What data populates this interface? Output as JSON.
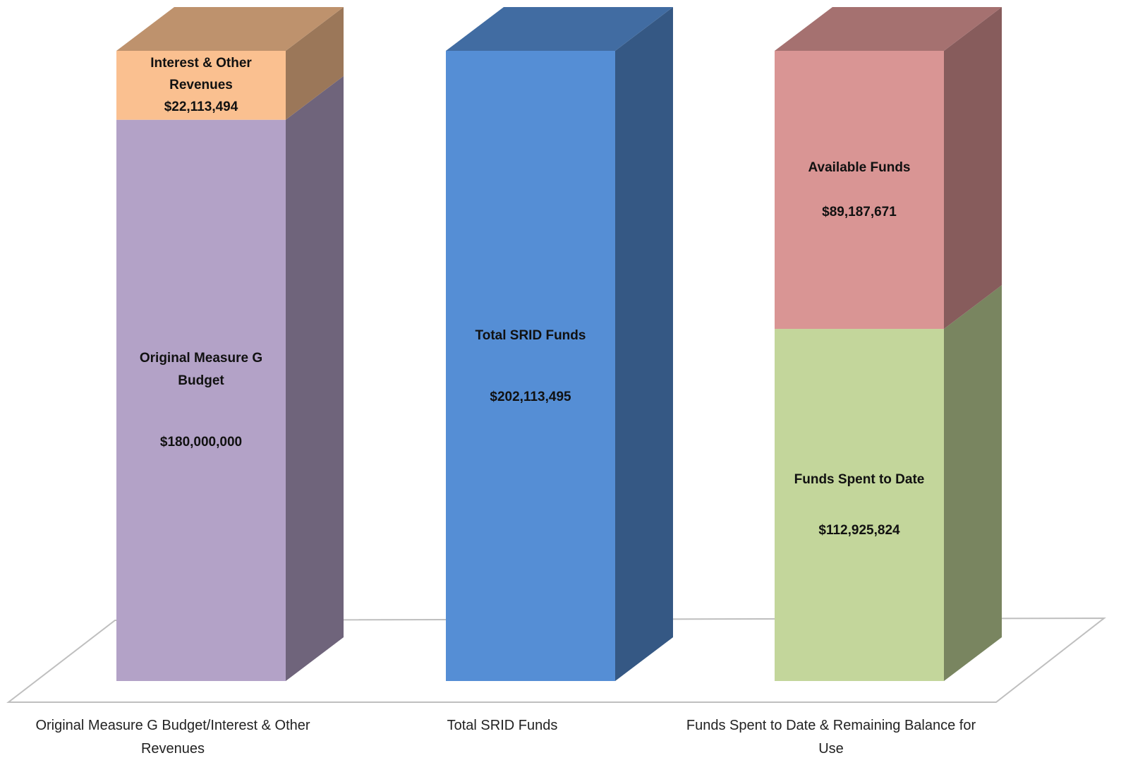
{
  "chart_data": {
    "type": "stacked-bar-3d",
    "categories": [
      "Original Measure G Budget/Interest & Other Revenues",
      "Total SRID Funds",
      "Funds Spent to Date & Remaining Balance for Use"
    ],
    "series": [
      {
        "name": "Original Measure G Budget",
        "color": "#b3a2c7",
        "values": [
          180000000,
          null,
          null
        ],
        "value_labels": [
          "$180,000,000",
          null,
          null
        ]
      },
      {
        "name": "Interest & Other Revenues",
        "color": "#fac090",
        "values": [
          22113494,
          null,
          null
        ],
        "value_labels": [
          "$22,113,494",
          null,
          null
        ]
      },
      {
        "name": "Total SRID Funds",
        "color": "#558ed5",
        "values": [
          null,
          202113495,
          null
        ],
        "value_labels": [
          null,
          "$202,113,495",
          null
        ]
      },
      {
        "name": "Funds Spent to Date",
        "color": "#c3d69b",
        "values": [
          null,
          null,
          112925824
        ],
        "value_labels": [
          null,
          null,
          "$112,925,824"
        ]
      },
      {
        "name": "Available Funds",
        "color": "#d99594",
        "values": [
          null,
          null,
          89187671
        ],
        "value_labels": [
          null,
          null,
          "$89,187,671"
        ]
      }
    ]
  }
}
